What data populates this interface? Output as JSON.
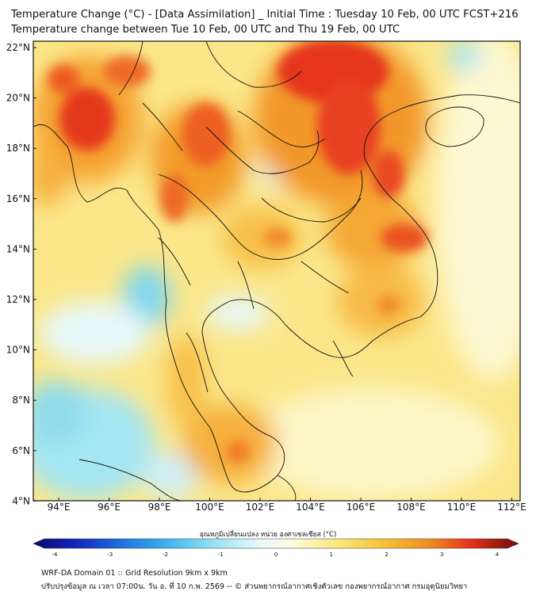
{
  "title_line1": "Temperature Change (°C) - [Data Assimilation] _ Initial Time : Tuesday 10 Feb, 00 UTC FCST+216",
  "title_line2": "Temperature change between Tue 10 Feb, 00 UTC and Thu 19 Feb, 00 UTC",
  "lat_labels": [
    "22°N",
    "20°N",
    "18°N",
    "16°N",
    "14°N",
    "12°N",
    "10°N",
    "8°N",
    "6°N",
    "4°N"
  ],
  "lon_labels": [
    "94°E",
    "96°E",
    "98°E",
    "100°E",
    "102°E",
    "104°E",
    "106°E",
    "108°E",
    "110°E",
    "112°E"
  ],
  "colorbar": {
    "label": "อุณหภูมิเปลี่ยนแปลง หน่วย องศาเซลเซียส (°C)",
    "ticks": [
      "-4",
      "-3",
      "-2",
      "-1",
      "0",
      "1",
      "2",
      "3",
      "4"
    ],
    "range": [
      -4,
      4
    ]
  },
  "footer_line1": "WRF-DA Domain 01 :: Grid Resolution 9km x 9km",
  "footer_line2": "ปรับปรุงข้อมูล ณ เวลา 07:00น. วัน อ. ที่ 10 ก.พ. 2569 -- © ส่วนพยากรณ์อากาศเชิงตัวเลข กองพยากรณ์อากาศ กรมอุตุนิยมวิทยา",
  "colors": {
    "map_base": "#fbe78a",
    "hot_red": "#e5361e",
    "warm_orange": "#f29b2a",
    "cool_cyan": "#8fe0f1",
    "neutral_white": "#f6fbfb",
    "coastline": "#111111"
  }
}
